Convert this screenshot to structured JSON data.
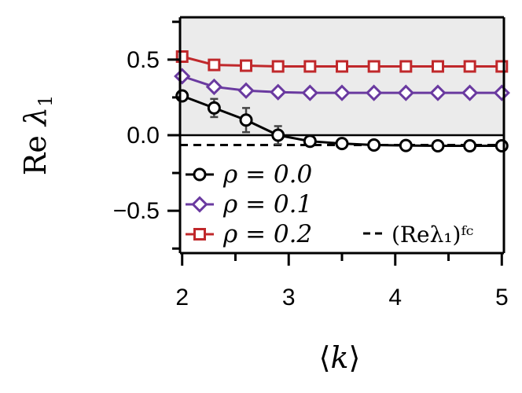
{
  "chart_data": {
    "type": "line",
    "xlabel": "⟨k⟩",
    "ylabel": "Re λ₁",
    "xlim": [
      1.98,
      5.02
    ],
    "ylim": [
      -0.78,
      0.78
    ],
    "shaded_region": {
      "y_from": 0.0,
      "y_to": 0.78,
      "color": "#ebebeb"
    },
    "x_ticks": [
      2,
      3,
      4,
      5
    ],
    "x_tick_labels": [
      "2",
      "3",
      "4",
      "5"
    ],
    "x_minor_ticks": [
      2.5,
      3.5,
      4.5
    ],
    "y_ticks": [
      -0.5,
      0.0,
      0.5
    ],
    "y_tick_labels": [
      "−0.5",
      "0.0",
      "0.5"
    ],
    "y_minor_ticks": [
      -0.75,
      -0.25,
      0.25,
      0.75
    ],
    "zero_line": 0.0,
    "reference_line": {
      "y": -0.065,
      "style": "dashed",
      "label": "(Reλ₁)ᶠᶜ",
      "color": "#000000"
    },
    "series": [
      {
        "name": "ρ = 0.0",
        "marker": "circle",
        "color": "#000000",
        "x": [
          2.0,
          2.3,
          2.6,
          2.9,
          3.2,
          3.5,
          3.8,
          4.1,
          4.4,
          4.7,
          5.0
        ],
        "y": [
          0.26,
          0.18,
          0.1,
          0.0,
          -0.04,
          -0.055,
          -0.065,
          -0.068,
          -0.07,
          -0.07,
          -0.07
        ],
        "err": [
          0.0,
          0.06,
          0.08,
          0.06,
          0.03,
          0.0,
          0.0,
          0.0,
          0.0,
          0.0,
          0.0
        ]
      },
      {
        "name": "ρ = 0.1",
        "marker": "diamond",
        "color": "#6a3aa0",
        "x": [
          2.0,
          2.3,
          2.6,
          2.9,
          3.2,
          3.5,
          3.8,
          4.1,
          4.4,
          4.7,
          5.0
        ],
        "y": [
          0.39,
          0.32,
          0.295,
          0.285,
          0.28,
          0.28,
          0.28,
          0.28,
          0.28,
          0.28,
          0.28
        ]
      },
      {
        "name": "ρ = 0.2",
        "marker": "square",
        "color": "#c0282b",
        "x": [
          2.0,
          2.3,
          2.6,
          2.9,
          3.2,
          3.5,
          3.8,
          4.1,
          4.4,
          4.7,
          5.0
        ],
        "y": [
          0.52,
          0.465,
          0.46,
          0.455,
          0.455,
          0.455,
          0.455,
          0.455,
          0.455,
          0.455,
          0.455
        ]
      }
    ],
    "legend": {
      "position": "lower-left"
    }
  }
}
